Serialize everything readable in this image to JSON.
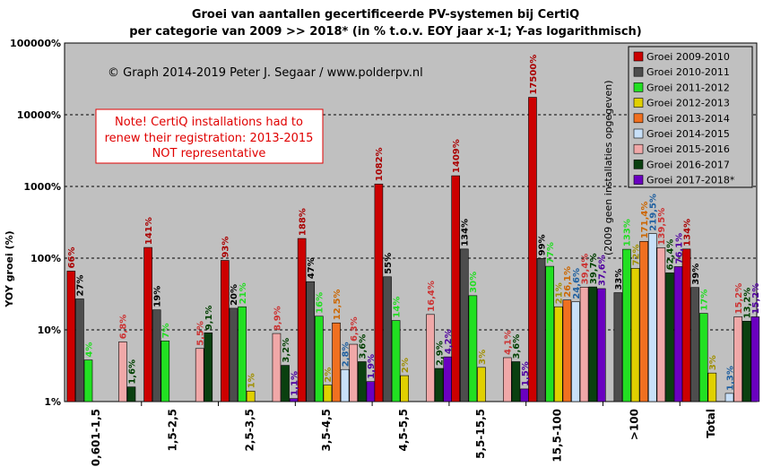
{
  "chart_data": {
    "type": "bar",
    "title": "Groei  van aantallen  gecertificeerde  PV-systemen bij CertiQ",
    "subtitle": "per categorie van 2009 >> 2018* (in % t.o.v. EOY jaar x-1; Y-as logarithmisch)",
    "ylabel": "YOY groei (%)",
    "xlabel": "",
    "yscale": "log",
    "ylim": [
      1,
      100000
    ],
    "yticks": [
      "1%",
      "10%",
      "100%",
      "1000%",
      "10000%",
      "100000%"
    ],
    "grid": true,
    "legend_position": "top-right",
    "categories": [
      "0,601-1,5",
      "1,5-2,5",
      "2,5-3,5",
      "3,5-4,5",
      "4,5-5,5",
      "5,5-15,5",
      "15,5-100",
      ">100",
      "Total"
    ],
    "series": [
      {
        "name": "Groei 2009-2010",
        "color": "#cc0000",
        "label_color": "#aa0000",
        "values": [
          66,
          141,
          93,
          188,
          1082,
          1409,
          17500,
          null,
          134
        ],
        "labels": [
          "66%",
          "141%",
          "93%",
          "188%",
          "1082%",
          "1409%",
          "17500%",
          "",
          "134%"
        ]
      },
      {
        "name": "Groei 2010-2011",
        "color": "#4d4d4d",
        "label_color": "#000000",
        "values": [
          27,
          19,
          20,
          47,
          55,
          134,
          99,
          33,
          39
        ],
        "labels": [
          "27%",
          "19%",
          "20%",
          "47%",
          "55%",
          "134%",
          "99%",
          "33%",
          "39%"
        ]
      },
      {
        "name": "Groei 2011-2012",
        "color": "#22e022",
        "label_color": "#22dd22",
        "values": [
          3.8,
          7,
          21,
          15.5,
          13.5,
          30,
          77,
          133,
          17
        ],
        "labels": [
          "4%",
          "7%",
          "21%",
          "16%",
          "14%",
          "30%",
          "77%",
          "133%",
          "17%"
        ]
      },
      {
        "name": "Groei 2012-2013",
        "color": "#e0d000",
        "label_color": "#a09000",
        "values": [
          null,
          null,
          1.4,
          1.7,
          2.3,
          3,
          21,
          72,
          2.5
        ],
        "labels": [
          "",
          "",
          "1%",
          "2%",
          "2%",
          "3%",
          "21%",
          "72%",
          "3%"
        ]
      },
      {
        "name": "Groei 2013-2014",
        "color": "#f07020",
        "label_color": "#cc6600",
        "values": [
          null,
          null,
          null,
          12.5,
          null,
          null,
          26.1,
          171.4,
          null
        ],
        "labels": [
          "",
          "",
          "",
          "12,5%",
          "",
          "",
          "26,1%",
          "171,4%",
          ""
        ]
      },
      {
        "name": "Groei 2014-2015",
        "color": "#c8e0f8",
        "label_color": "#2060a0",
        "values": [
          null,
          null,
          null,
          2.8,
          null,
          null,
          24.6,
          219.5,
          1.3
        ],
        "labels": [
          "",
          "",
          "",
          "2,8%",
          "",
          "",
          "24,6%",
          "219,5%",
          "1,3%"
        ]
      },
      {
        "name": "Groei 2015-2016",
        "color": "#f0a8a8",
        "label_color": "#cc3333",
        "values": [
          6.8,
          5.5,
          8.9,
          6.3,
          16.4,
          4.1,
          39.4,
          139.5,
          15.2
        ],
        "labels": [
          "6,8%",
          "5,5%",
          "8,9%",
          "6,3%",
          "16,4%",
          "4,1%",
          "39,4%",
          "139,5%",
          "15,2%"
        ]
      },
      {
        "name": "Groei 2016-2017",
        "color": "#0a4010",
        "label_color": "#004000",
        "values": [
          1.6,
          9.1,
          3.2,
          3.6,
          2.9,
          3.6,
          39.7,
          62.4,
          13.2
        ],
        "labels": [
          "1,6%",
          "9,1%",
          "3,2%",
          "3,6%",
          "2,9%",
          "3,6%",
          "39,7%",
          "62,4%",
          "13,2%"
        ]
      },
      {
        "name": "Groei 2017-2018*",
        "color": "#6a00c0",
        "label_color": "#5000a0",
        "values": [
          null,
          null,
          1.1,
          1.9,
          4.2,
          1.5,
          37.6,
          76.1,
          15.2
        ],
        "labels": [
          "",
          "",
          "1,1%",
          "1,9%",
          "4,2%",
          "1,5%",
          "37,6%",
          "76,1%",
          "15,2%"
        ]
      }
    ],
    "annotations": {
      "copyright": "© Graph  2014-2019  Peter J. Segaar  /  www.polderpv.nl",
      "note": [
        "Note! CertiQ installations had to",
        "renew their registration: 2013-2015",
        "NOT representative"
      ],
      "vertical_note": "(2009 geen installaties opgegeven)"
    }
  }
}
